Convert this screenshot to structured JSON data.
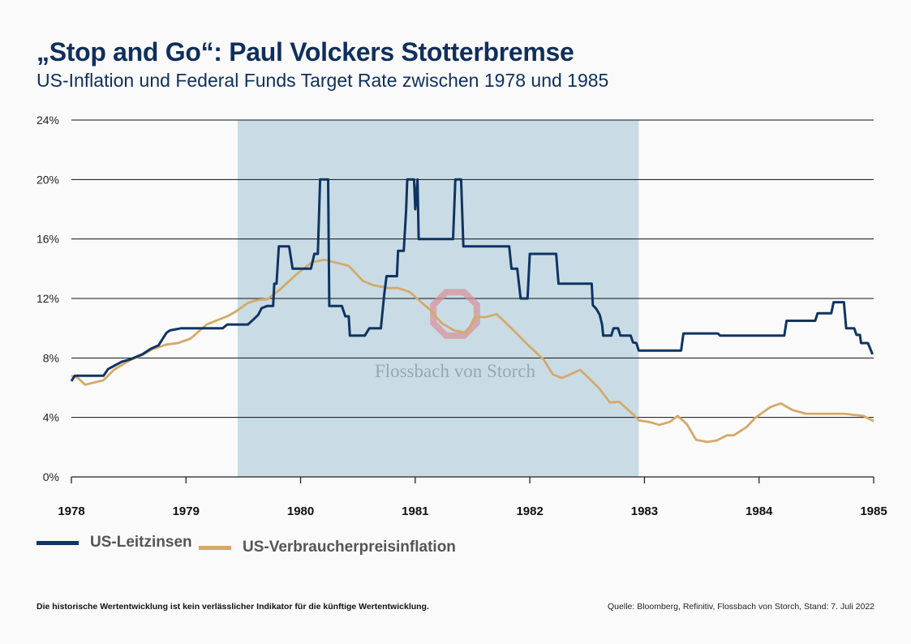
{
  "title": "„Stop and Go“: Paul Volckers Stotterbremse",
  "subtitle": "US-Inflation und Federal Funds Target Rate zwischen 1978 und 1985",
  "footer": {
    "disclaimer": "Die historische Wertentwicklung ist kein verlässlicher Indikator für die künftige Wertentwicklung.",
    "source": "Quelle: Bloomberg, Refinitiv, Flossbach von Storch, Stand: 7. Juli 2022"
  },
  "watermark": "Flossbach von Storch",
  "chart_data": {
    "type": "line",
    "xlim": [
      1978,
      1985
    ],
    "ylim": [
      0,
      24
    ],
    "x_ticks": [
      "1978",
      "1979",
      "1980",
      "1981",
      "1982",
      "1983",
      "1984",
      "1985"
    ],
    "y_ticks": [
      "0%",
      "4%",
      "8%",
      "12%",
      "16%",
      "20%",
      "24%"
    ],
    "y_tick_values": [
      0,
      4,
      8,
      12,
      16,
      20,
      24
    ],
    "grid": "horizontal",
    "legend_position": "bottom-left",
    "highlight_range": [
      1979.45,
      1982.95
    ],
    "colors": {
      "rate": "#0f3463",
      "inflation": "#d4a96a",
      "highlight": "#c9dce5"
    },
    "series": [
      {
        "name": "US-Leitzinsen",
        "key": "rate",
        "points": [
          [
            1978.0,
            6.45
          ],
          [
            1978.03,
            6.8
          ],
          [
            1978.28,
            6.8
          ],
          [
            1978.32,
            7.25
          ],
          [
            1978.38,
            7.5
          ],
          [
            1978.44,
            7.75
          ],
          [
            1978.51,
            7.9
          ],
          [
            1978.62,
            8.25
          ],
          [
            1978.69,
            8.6
          ],
          [
            1978.76,
            8.85
          ],
          [
            1978.83,
            9.7
          ],
          [
            1978.86,
            9.85
          ],
          [
            1978.96,
            10
          ],
          [
            1979.32,
            10
          ],
          [
            1979.36,
            10.25
          ],
          [
            1979.54,
            10.25
          ],
          [
            1979.59,
            10.6
          ],
          [
            1979.63,
            10.9
          ],
          [
            1979.66,
            11.35
          ],
          [
            1979.71,
            11.5
          ],
          [
            1979.76,
            11.5
          ],
          [
            1979.77,
            13
          ],
          [
            1979.79,
            13
          ],
          [
            1979.81,
            15.5
          ],
          [
            1979.9,
            15.5
          ],
          [
            1979.93,
            14
          ],
          [
            1980.09,
            14
          ],
          [
            1980.12,
            15
          ],
          [
            1980.15,
            15
          ],
          [
            1980.17,
            20
          ],
          [
            1980.24,
            20
          ],
          [
            1980.25,
            11.5
          ],
          [
            1980.36,
            11.5
          ],
          [
            1980.39,
            10.8
          ],
          [
            1980.42,
            10.8
          ],
          [
            1980.43,
            9.5
          ],
          [
            1980.56,
            9.5
          ],
          [
            1980.6,
            10
          ],
          [
            1980.7,
            10
          ],
          [
            1980.73,
            12.3
          ],
          [
            1980.75,
            13.5
          ],
          [
            1980.84,
            13.5
          ],
          [
            1980.85,
            15.2
          ],
          [
            1980.9,
            15.2
          ],
          [
            1980.92,
            17.9
          ],
          [
            1980.93,
            20
          ],
          [
            1980.99,
            20
          ],
          [
            1981.0,
            18
          ],
          [
            1981.02,
            20
          ],
          [
            1981.03,
            16
          ],
          [
            1981.33,
            16
          ],
          [
            1981.35,
            20
          ],
          [
            1981.4,
            20
          ],
          [
            1981.42,
            15.5
          ],
          [
            1981.82,
            15.5
          ],
          [
            1981.84,
            14
          ],
          [
            1981.89,
            14
          ],
          [
            1981.92,
            12
          ],
          [
            1981.98,
            12
          ],
          [
            1982.0,
            15
          ],
          [
            1982.23,
            15
          ],
          [
            1982.25,
            13
          ],
          [
            1982.54,
            13
          ],
          [
            1982.55,
            11.55
          ],
          [
            1982.58,
            11.3
          ],
          [
            1982.61,
            10.9
          ],
          [
            1982.63,
            10.25
          ],
          [
            1982.64,
            9.5
          ],
          [
            1982.71,
            9.5
          ],
          [
            1982.73,
            10
          ],
          [
            1982.77,
            10
          ],
          [
            1982.79,
            9.5
          ],
          [
            1982.88,
            9.5
          ],
          [
            1982.9,
            9.05
          ],
          [
            1982.93,
            9.0
          ],
          [
            1982.95,
            8.5
          ],
          [
            1983.32,
            8.5
          ],
          [
            1983.34,
            9.65
          ],
          [
            1983.64,
            9.65
          ],
          [
            1983.66,
            9.5
          ],
          [
            1984.22,
            9.5
          ],
          [
            1984.24,
            10.5
          ],
          [
            1984.49,
            10.5
          ],
          [
            1984.51,
            11
          ],
          [
            1984.63,
            11
          ],
          [
            1984.65,
            11.75
          ],
          [
            1984.74,
            11.75
          ],
          [
            1984.76,
            10
          ],
          [
            1984.83,
            10
          ],
          [
            1984.85,
            9.55
          ],
          [
            1984.88,
            9.55
          ],
          [
            1984.89,
            9
          ],
          [
            1984.95,
            9
          ],
          [
            1984.99,
            8.25
          ]
        ]
      },
      {
        "name": "US-Verbraucherpreisinflation",
        "key": "inflation",
        "points": [
          [
            1978.0,
            6.8
          ],
          [
            1978.05,
            6.7
          ],
          [
            1978.12,
            6.2
          ],
          [
            1978.28,
            6.5
          ],
          [
            1978.37,
            7.2
          ],
          [
            1978.51,
            7.85
          ],
          [
            1978.62,
            8.2
          ],
          [
            1978.71,
            8.6
          ],
          [
            1978.83,
            8.9
          ],
          [
            1978.93,
            9.0
          ],
          [
            1979.04,
            9.3
          ],
          [
            1979.18,
            10.25
          ],
          [
            1979.36,
            10.8
          ],
          [
            1979.43,
            11.1
          ],
          [
            1979.54,
            11.7
          ],
          [
            1979.62,
            11.9
          ],
          [
            1979.71,
            11.95
          ],
          [
            1979.82,
            12.6
          ],
          [
            1979.96,
            13.6
          ],
          [
            1980.1,
            14.45
          ],
          [
            1980.21,
            14.6
          ],
          [
            1980.42,
            14.2
          ],
          [
            1980.54,
            13.2
          ],
          [
            1980.63,
            12.9
          ],
          [
            1980.77,
            12.7
          ],
          [
            1980.85,
            12.7
          ],
          [
            1980.95,
            12.45
          ],
          [
            1981.06,
            11.7
          ],
          [
            1981.13,
            11.25
          ],
          [
            1981.23,
            10.35
          ],
          [
            1981.34,
            9.85
          ],
          [
            1981.45,
            9.7
          ],
          [
            1981.52,
            10.75
          ],
          [
            1981.62,
            10.75
          ],
          [
            1981.71,
            10.95
          ],
          [
            1981.84,
            10.0
          ],
          [
            1981.98,
            8.9
          ],
          [
            1982.12,
            7.9
          ],
          [
            1982.2,
            6.9
          ],
          [
            1982.28,
            6.65
          ],
          [
            1982.44,
            7.2
          ],
          [
            1982.6,
            6.0
          ],
          [
            1982.7,
            5.0
          ],
          [
            1982.78,
            5.05
          ],
          [
            1982.91,
            4.15
          ],
          [
            1982.95,
            3.8
          ],
          [
            1983.04,
            3.7
          ],
          [
            1983.13,
            3.5
          ],
          [
            1983.22,
            3.7
          ],
          [
            1983.29,
            4.1
          ],
          [
            1983.37,
            3.55
          ],
          [
            1983.45,
            2.5
          ],
          [
            1983.55,
            2.35
          ],
          [
            1983.63,
            2.45
          ],
          [
            1983.72,
            2.8
          ],
          [
            1983.78,
            2.8
          ],
          [
            1983.89,
            3.35
          ],
          [
            1983.97,
            4.0
          ],
          [
            1984.1,
            4.7
          ],
          [
            1984.19,
            4.95
          ],
          [
            1984.29,
            4.5
          ],
          [
            1984.41,
            4.25
          ],
          [
            1984.74,
            4.25
          ],
          [
            1984.91,
            4.1
          ],
          [
            1985.0,
            3.75
          ]
        ]
      }
    ]
  }
}
